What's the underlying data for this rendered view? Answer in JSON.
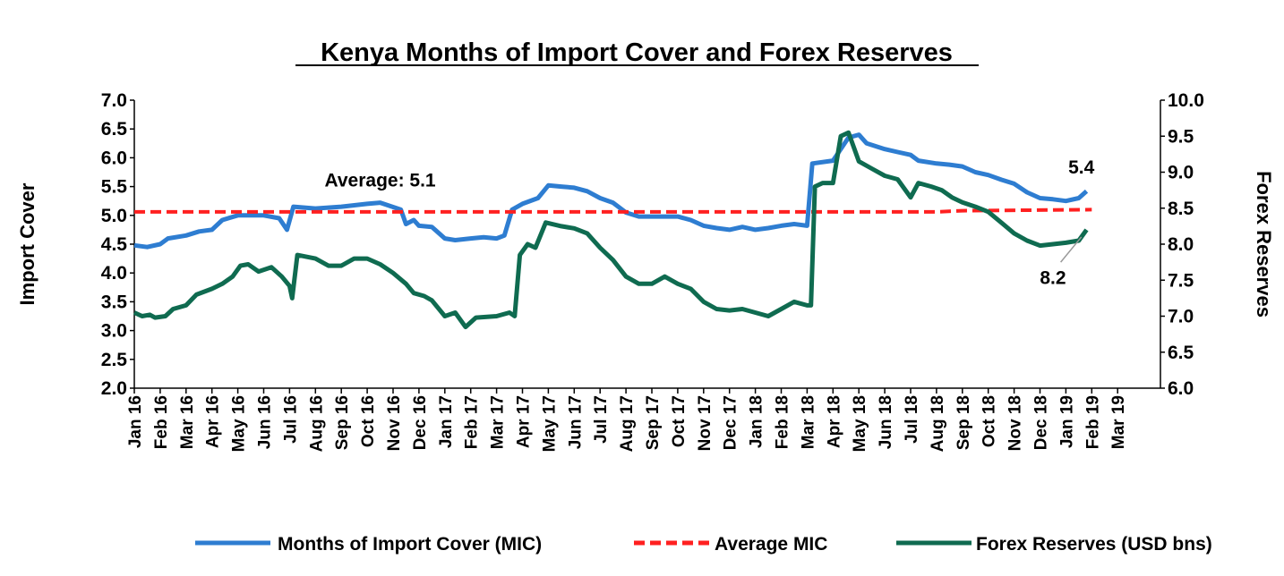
{
  "chart_data": {
    "type": "line",
    "title": "Kenya Months of Import Cover and Forex Reserves",
    "ylabel": "Import Cover",
    "y2label": "Forex Reserves",
    "ylim": [
      2.0,
      7.0
    ],
    "yticks": [
      "2.0",
      "2.5",
      "3.0",
      "3.5",
      "4.0",
      "4.5",
      "5.0",
      "5.5",
      "6.0",
      "6.5",
      "7.0"
    ],
    "y2lim": [
      6.0,
      10.0
    ],
    "y2ticks": [
      "6.0",
      "6.5",
      "7.0",
      "7.5",
      "8.0",
      "8.5",
      "9.0",
      "9.5",
      "10.0"
    ],
    "categories": [
      "Jan 16",
      "Feb 16",
      "Mar 16",
      "Apr 16",
      "May 16",
      "Jun 16",
      "Jul 16",
      "Aug 16",
      "Sep 16",
      "Oct 16",
      "Nov 16",
      "Dec 16",
      "Jan 17",
      "Feb 17",
      "Mar 17",
      "Apr 17",
      "May 17",
      "Jun 17",
      "Jul 17",
      "Aug 17",
      "Sep 17",
      "Oct 17",
      "Nov 17",
      "Dec 17",
      "Jan 18",
      "Feb 18",
      "Mar 18",
      "Apr 18",
      "May 18",
      "Jun 18",
      "Jul 18",
      "Aug 18",
      "Sep 18",
      "Oct 18",
      "Nov 18",
      "Dec 18",
      "Jan 19",
      "Feb 19",
      "Mar 19"
    ],
    "series": [
      {
        "name": "Months of Import Cover (MIC)",
        "axis": "left",
        "color": "#2E7DD1",
        "style": "solid",
        "points": [
          [
            0,
            4.48
          ],
          [
            0.5,
            4.45
          ],
          [
            1,
            4.5
          ],
          [
            1.3,
            4.6
          ],
          [
            2,
            4.65
          ],
          [
            2.5,
            4.72
          ],
          [
            3,
            4.75
          ],
          [
            3.4,
            4.92
          ],
          [
            4,
            5.0
          ],
          [
            5,
            5.0
          ],
          [
            5.6,
            4.95
          ],
          [
            5.9,
            4.75
          ],
          [
            6.15,
            5.15
          ],
          [
            7,
            5.12
          ],
          [
            8,
            5.15
          ],
          [
            9,
            5.2
          ],
          [
            9.5,
            5.22
          ],
          [
            10.3,
            5.1
          ],
          [
            10.5,
            4.85
          ],
          [
            10.8,
            4.92
          ],
          [
            11,
            4.82
          ],
          [
            11.5,
            4.8
          ],
          [
            12,
            4.6
          ],
          [
            12.4,
            4.57
          ],
          [
            13,
            4.6
          ],
          [
            13.5,
            4.62
          ],
          [
            14,
            4.6
          ],
          [
            14.3,
            4.65
          ],
          [
            14.6,
            5.1
          ],
          [
            15,
            5.2
          ],
          [
            15.6,
            5.3
          ],
          [
            16,
            5.52
          ],
          [
            16.5,
            5.5
          ],
          [
            17,
            5.48
          ],
          [
            17.5,
            5.42
          ],
          [
            18,
            5.3
          ],
          [
            18.5,
            5.22
          ],
          [
            19,
            5.05
          ],
          [
            19.5,
            4.98
          ],
          [
            20,
            4.98
          ],
          [
            21,
            4.98
          ],
          [
            21.5,
            4.92
          ],
          [
            22,
            4.82
          ],
          [
            22.5,
            4.78
          ],
          [
            23,
            4.75
          ],
          [
            23.5,
            4.8
          ],
          [
            24,
            4.75
          ],
          [
            24.5,
            4.78
          ],
          [
            25,
            4.82
          ],
          [
            25.5,
            4.85
          ],
          [
            26,
            4.82
          ],
          [
            26.2,
            5.9
          ],
          [
            27,
            5.95
          ],
          [
            27.6,
            6.35
          ],
          [
            28,
            6.4
          ],
          [
            28.3,
            6.25
          ],
          [
            29,
            6.15
          ],
          [
            29.5,
            6.1
          ],
          [
            30,
            6.05
          ],
          [
            30.3,
            5.95
          ],
          [
            31,
            5.9
          ],
          [
            31.5,
            5.88
          ],
          [
            32,
            5.85
          ],
          [
            32.5,
            5.75
          ],
          [
            33,
            5.7
          ],
          [
            33.5,
            5.62
          ],
          [
            34,
            5.55
          ],
          [
            34.5,
            5.4
          ],
          [
            35,
            5.3
          ],
          [
            35.5,
            5.28
          ],
          [
            36,
            5.25
          ],
          [
            36.5,
            5.3
          ],
          [
            36.8,
            5.42
          ]
        ]
      },
      {
        "name": "Average MIC",
        "axis": "left",
        "color": "#FF2020",
        "style": "dashed",
        "points": [
          [
            0,
            5.06
          ],
          [
            31,
            5.06
          ],
          [
            32,
            5.08
          ],
          [
            37,
            5.1
          ]
        ]
      },
      {
        "name": "Forex Reserves (USD bns)",
        "axis": "right",
        "color": "#0F6B50",
        "style": "solid",
        "points": [
          [
            0,
            7.05
          ],
          [
            0.3,
            7.0
          ],
          [
            0.6,
            7.02
          ],
          [
            0.8,
            6.98
          ],
          [
            1.2,
            7.0
          ],
          [
            1.5,
            7.1
          ],
          [
            2,
            7.15
          ],
          [
            2.4,
            7.3
          ],
          [
            3,
            7.38
          ],
          [
            3.4,
            7.45
          ],
          [
            3.8,
            7.55
          ],
          [
            4.1,
            7.7
          ],
          [
            4.4,
            7.72
          ],
          [
            4.8,
            7.62
          ],
          [
            5.3,
            7.68
          ],
          [
            5.7,
            7.55
          ],
          [
            6,
            7.42
          ],
          [
            6.1,
            7.25
          ],
          [
            6.3,
            7.85
          ],
          [
            7,
            7.8
          ],
          [
            7.5,
            7.7
          ],
          [
            8,
            7.7
          ],
          [
            8.5,
            7.8
          ],
          [
            9,
            7.8
          ],
          [
            9.5,
            7.72
          ],
          [
            10,
            7.6
          ],
          [
            10.5,
            7.45
          ],
          [
            10.8,
            7.32
          ],
          [
            11.2,
            7.28
          ],
          [
            11.5,
            7.22
          ],
          [
            12,
            7.0
          ],
          [
            12.4,
            7.05
          ],
          [
            12.8,
            6.85
          ],
          [
            13.2,
            6.98
          ],
          [
            14,
            7.0
          ],
          [
            14.5,
            7.05
          ],
          [
            14.7,
            7.0
          ],
          [
            14.9,
            7.85
          ],
          [
            15.2,
            8.0
          ],
          [
            15.5,
            7.95
          ],
          [
            15.9,
            8.3
          ],
          [
            16.5,
            8.25
          ],
          [
            17,
            8.22
          ],
          [
            17.5,
            8.15
          ],
          [
            18,
            7.95
          ],
          [
            18.5,
            7.78
          ],
          [
            19,
            7.55
          ],
          [
            19.5,
            7.45
          ],
          [
            20,
            7.45
          ],
          [
            20.5,
            7.55
          ],
          [
            21,
            7.45
          ],
          [
            21.5,
            7.38
          ],
          [
            22,
            7.2
          ],
          [
            22.5,
            7.1
          ],
          [
            23,
            7.08
          ],
          [
            23.5,
            7.1
          ],
          [
            24,
            7.05
          ],
          [
            24.5,
            7.0
          ],
          [
            25,
            7.1
          ],
          [
            25.5,
            7.2
          ],
          [
            26,
            7.15
          ],
          [
            26.15,
            7.15
          ],
          [
            26.3,
            8.8
          ],
          [
            26.6,
            8.85
          ],
          [
            27,
            8.85
          ],
          [
            27.3,
            9.5
          ],
          [
            27.6,
            9.55
          ],
          [
            28,
            9.15
          ],
          [
            28.5,
            9.05
          ],
          [
            29,
            8.95
          ],
          [
            29.5,
            8.9
          ],
          [
            30,
            8.65
          ],
          [
            30.3,
            8.85
          ],
          [
            30.8,
            8.8
          ],
          [
            31.2,
            8.75
          ],
          [
            31.6,
            8.65
          ],
          [
            32,
            8.58
          ],
          [
            32.5,
            8.52
          ],
          [
            33,
            8.45
          ],
          [
            33.5,
            8.3
          ],
          [
            34,
            8.15
          ],
          [
            34.5,
            8.05
          ],
          [
            35,
            7.98
          ],
          [
            35.5,
            8.0
          ],
          [
            36,
            8.02
          ],
          [
            36.5,
            8.05
          ],
          [
            36.8,
            8.2
          ]
        ]
      }
    ],
    "annotations": [
      {
        "text": "Average: 5.1",
        "x": 9.5,
        "y": 5.5,
        "axis": "left"
      },
      {
        "text": "5.4",
        "x": 36.6,
        "y": 5.73,
        "axis": "left"
      },
      {
        "text": "8.2",
        "x": 35.5,
        "y": 7.45,
        "axis": "right"
      }
    ],
    "legend_position": "bottom",
    "grid": false
  }
}
